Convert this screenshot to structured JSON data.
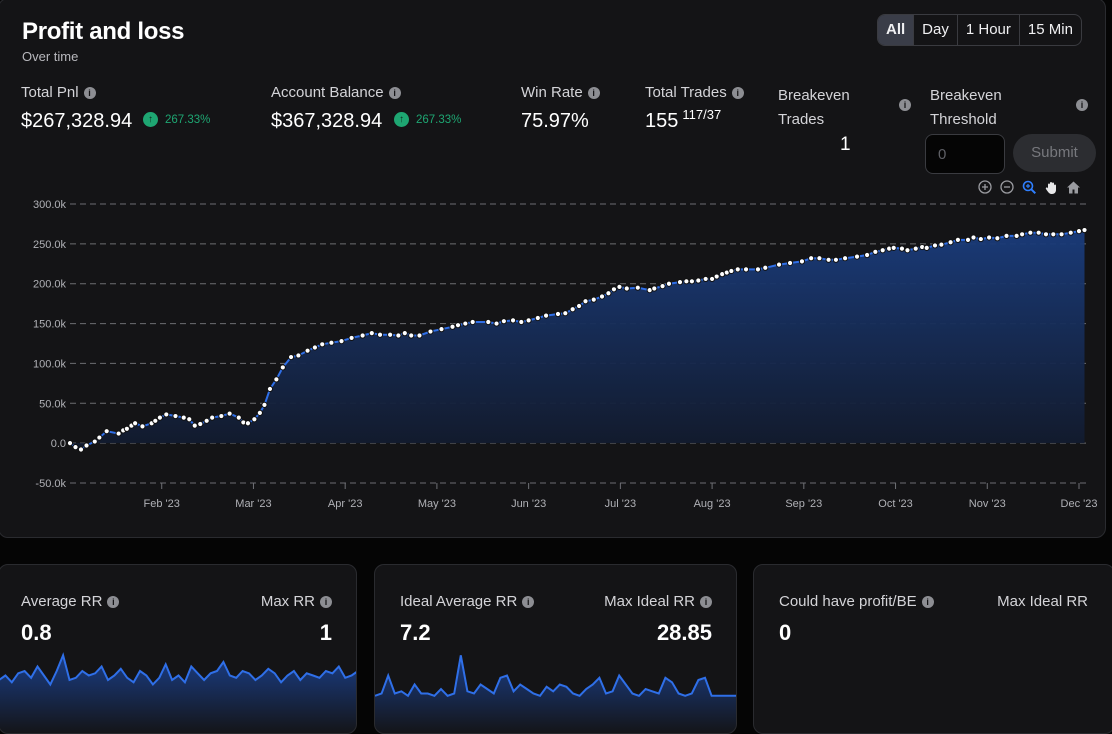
{
  "header": {
    "title": "Profit and loss",
    "subtitle": "Over time",
    "ranges": [
      "All",
      "Day",
      "1 Hour",
      "15 Min"
    ],
    "active_range": "All"
  },
  "stats": {
    "total_pnl": {
      "label": "Total Pnl",
      "value": "$267,328.94",
      "change": "267.33%"
    },
    "account_balance": {
      "label": "Account Balance",
      "value": "$367,328.94",
      "change": "267.33%"
    },
    "win_rate": {
      "label": "Win Rate",
      "value": "75.97%"
    },
    "total_trades": {
      "label": "Total Trades",
      "value": "155",
      "split": "117/37"
    },
    "breakeven_trades": {
      "label_line1": "Breakeven",
      "label_line2": "Trades",
      "value": "1"
    },
    "breakeven_threshold": {
      "label_line1": "Breakeven",
      "label_line2": "Threshold",
      "placeholder": "0",
      "submit_label": "Submit"
    }
  },
  "toolbar_icons": [
    "zoom-in-icon",
    "zoom-out-icon",
    "zoom-select-icon",
    "pan-hand-icon",
    "home-reset-icon"
  ],
  "colors": {
    "line": "#2f6fe8",
    "area_top": "#1a3c7c",
    "area_bottom": "#121a2c",
    "positive": "#1ea672",
    "zoom_active": "#2f7fff"
  },
  "chart_data": {
    "type": "area",
    "title": "Profit and loss",
    "ylim": [
      -50000,
      300000
    ],
    "yticks": [
      {
        "v": 300000,
        "label": "300.0k"
      },
      {
        "v": 250000,
        "label": "250.0k"
      },
      {
        "v": 200000,
        "label": "200.0k"
      },
      {
        "v": 150000,
        "label": "150.0k"
      },
      {
        "v": 100000,
        "label": "100.0k"
      },
      {
        "v": 50000,
        "label": "50.0k"
      },
      {
        "v": 0,
        "label": "0.0"
      },
      {
        "v": -50000,
        "label": "-50.0k"
      }
    ],
    "xlim": [
      0,
      11.12
    ],
    "xticks": [
      {
        "v": 1,
        "label": "Feb '23"
      },
      {
        "v": 2,
        "label": "Mar '23"
      },
      {
        "v": 3,
        "label": "Apr '23"
      },
      {
        "v": 4,
        "label": "May '23"
      },
      {
        "v": 5,
        "label": "Jun '23"
      },
      {
        "v": 6,
        "label": "Jul '23"
      },
      {
        "v": 7,
        "label": "Aug '23"
      },
      {
        "v": 8,
        "label": "Sep '23"
      },
      {
        "v": 9,
        "label": "Oct '23"
      },
      {
        "v": 10,
        "label": "Nov '23"
      },
      {
        "v": 11,
        "label": "Dec '23"
      }
    ],
    "grid": "horizontal dashed",
    "series": [
      {
        "points": [
          [
            0.0,
            0
          ],
          [
            0.06,
            -5000
          ],
          [
            0.12,
            -8000
          ],
          [
            0.18,
            -3000
          ],
          [
            0.27,
            2000
          ],
          [
            0.32,
            7000
          ],
          [
            0.4,
            15000
          ],
          [
            0.53,
            12000
          ],
          [
            0.58,
            16000
          ],
          [
            0.62,
            18000
          ],
          [
            0.67,
            22000
          ],
          [
            0.71,
            25000
          ],
          [
            0.79,
            21000
          ],
          [
            0.89,
            25000
          ],
          [
            0.93,
            28000
          ],
          [
            0.98,
            32000
          ],
          [
            1.05,
            36000
          ],
          [
            1.15,
            34000
          ],
          [
            1.24,
            32000
          ],
          [
            1.3,
            30000
          ],
          [
            1.36,
            22000
          ],
          [
            1.42,
            24000
          ],
          [
            1.49,
            28000
          ],
          [
            1.55,
            32000
          ],
          [
            1.65,
            34000
          ],
          [
            1.74,
            37000
          ],
          [
            1.84,
            32000
          ],
          [
            1.89,
            26000
          ],
          [
            1.94,
            25000
          ],
          [
            2.01,
            30000
          ],
          [
            2.07,
            38000
          ],
          [
            2.12,
            48000
          ],
          [
            2.18,
            68000
          ],
          [
            2.25,
            80000
          ],
          [
            2.32,
            95000
          ],
          [
            2.41,
            108000
          ],
          [
            2.49,
            110000
          ],
          [
            2.59,
            116000
          ],
          [
            2.67,
            120000
          ],
          [
            2.75,
            124000
          ],
          [
            2.85,
            126000
          ],
          [
            2.96,
            128000
          ],
          [
            3.07,
            132000
          ],
          [
            3.19,
            135000
          ],
          [
            3.29,
            138000
          ],
          [
            3.38,
            136000
          ],
          [
            3.49,
            136000
          ],
          [
            3.58,
            135000
          ],
          [
            3.65,
            138000
          ],
          [
            3.72,
            135000
          ],
          [
            3.81,
            135000
          ],
          [
            3.93,
            140000
          ],
          [
            4.05,
            143000
          ],
          [
            4.17,
            146000
          ],
          [
            4.23,
            148000
          ],
          [
            4.31,
            150000
          ],
          [
            4.39,
            152000
          ],
          [
            4.56,
            152000
          ],
          [
            4.65,
            150000
          ],
          [
            4.73,
            153000
          ],
          [
            4.83,
            154000
          ],
          [
            4.92,
            152000
          ],
          [
            5.0,
            154000
          ],
          [
            5.1,
            157000
          ],
          [
            5.19,
            160000
          ],
          [
            5.32,
            162000
          ],
          [
            5.4,
            163000
          ],
          [
            5.48,
            168000
          ],
          [
            5.55,
            172000
          ],
          [
            5.62,
            178000
          ],
          [
            5.71,
            180000
          ],
          [
            5.8,
            184000
          ],
          [
            5.87,
            188000
          ],
          [
            5.93,
            193000
          ],
          [
            5.99,
            196000
          ],
          [
            6.07,
            194000
          ],
          [
            6.19,
            195000
          ],
          [
            6.32,
            192000
          ],
          [
            6.37,
            194000
          ],
          [
            6.46,
            197000
          ],
          [
            6.53,
            200000
          ],
          [
            6.65,
            202000
          ],
          [
            6.72,
            203000
          ],
          [
            6.78,
            203000
          ],
          [
            6.85,
            204000
          ],
          [
            6.93,
            206000
          ],
          [
            7.0,
            206000
          ],
          [
            7.05,
            209000
          ],
          [
            7.11,
            212000
          ],
          [
            7.16,
            214000
          ],
          [
            7.21,
            216000
          ],
          [
            7.28,
            218000
          ],
          [
            7.37,
            218000
          ],
          [
            7.5,
            218000
          ],
          [
            7.58,
            220000
          ],
          [
            7.73,
            224000
          ],
          [
            7.85,
            226000
          ],
          [
            7.98,
            228000
          ],
          [
            8.08,
            232000
          ],
          [
            8.17,
            232000
          ],
          [
            8.27,
            230000
          ],
          [
            8.35,
            230000
          ],
          [
            8.45,
            232000
          ],
          [
            8.58,
            234000
          ],
          [
            8.69,
            236000
          ],
          [
            8.78,
            240000
          ],
          [
            8.86,
            242000
          ],
          [
            8.93,
            244000
          ],
          [
            8.98,
            245000
          ],
          [
            9.07,
            244000
          ],
          [
            9.13,
            242000
          ],
          [
            9.22,
            244000
          ],
          [
            9.29,
            246000
          ],
          [
            9.34,
            245000
          ],
          [
            9.43,
            248000
          ],
          [
            9.5,
            249000
          ],
          [
            9.6,
            252000
          ],
          [
            9.68,
            255000
          ],
          [
            9.79,
            255000
          ],
          [
            9.85,
            258000
          ],
          [
            9.93,
            256000
          ],
          [
            10.02,
            258000
          ],
          [
            10.11,
            257000
          ],
          [
            10.21,
            260000
          ],
          [
            10.32,
            260000
          ],
          [
            10.38,
            262000
          ],
          [
            10.47,
            264000
          ],
          [
            10.56,
            264000
          ],
          [
            10.64,
            262000
          ],
          [
            10.72,
            262000
          ],
          [
            10.81,
            262000
          ],
          [
            10.91,
            264000
          ],
          [
            11.0,
            266000
          ],
          [
            11.06,
            267329
          ]
        ]
      }
    ]
  },
  "cards": [
    {
      "label_left": "Average RR",
      "label_right": "Max RR",
      "value_left": "0.8",
      "value_right": "1",
      "spark": [
        0.4,
        0.5,
        0.35,
        0.55,
        0.6,
        0.45,
        0.7,
        0.5,
        0.3,
        0.6,
        0.95,
        0.4,
        0.45,
        0.6,
        0.5,
        0.55,
        0.7,
        0.4,
        0.5,
        0.65,
        0.45,
        0.35,
        0.6,
        0.5,
        0.3,
        0.45,
        0.75,
        0.4,
        0.5,
        0.35,
        0.7,
        0.55,
        0.4,
        0.55,
        0.6,
        0.8,
        0.5,
        0.45,
        0.6,
        0.55,
        0.4,
        0.5,
        0.65,
        0.55,
        0.35,
        0.5,
        0.6,
        0.4,
        0.55,
        0.5,
        0.45,
        0.6,
        0.55,
        0.7,
        0.45,
        0.5,
        0.6
      ]
    },
    {
      "label_left": "Ideal Average RR",
      "label_right": "Max Ideal RR",
      "value_left": "7.2",
      "value_right": "28.85",
      "spark": [
        0.05,
        0.1,
        0.5,
        0.1,
        0.15,
        0.05,
        0.3,
        0.1,
        0.1,
        0.05,
        0.2,
        0.05,
        0.1,
        0.95,
        0.15,
        0.1,
        0.3,
        0.2,
        0.1,
        0.45,
        0.5,
        0.15,
        0.3,
        0.2,
        0.1,
        0.05,
        0.25,
        0.15,
        0.3,
        0.25,
        0.1,
        0.05,
        0.2,
        0.3,
        0.45,
        0.1,
        0.15,
        0.5,
        0.3,
        0.1,
        0.05,
        0.2,
        0.15,
        0.1,
        0.45,
        0.35,
        0.1,
        0.05,
        0.1,
        0.4,
        0.45,
        0.05,
        0.05,
        0.05,
        0.05,
        0.05
      ]
    },
    {
      "label_left": "Could have profit/BE",
      "label_right": "Max Ideal RR",
      "value_left": "0",
      "value_right": ""
    }
  ]
}
